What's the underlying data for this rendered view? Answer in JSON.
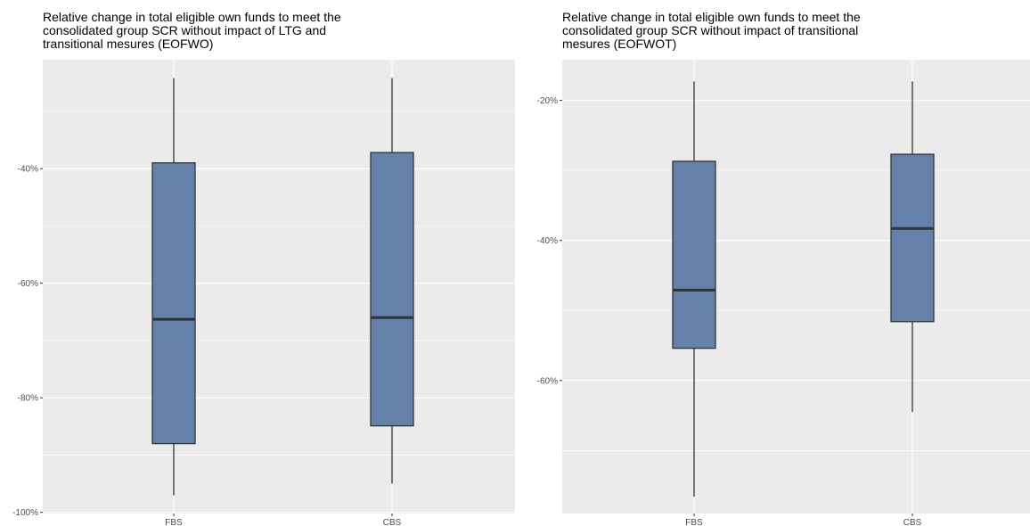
{
  "charts": [
    {
      "title_lines": [
        "Relative change in total eligible own funds to meet the",
        "consolidated group SCR without impact of LTG and",
        "transitional mesures (EOFWO)"
      ]
    },
    {
      "title_lines": [
        "Relative change in total eligible own funds to meet the",
        "consolidated group SCR without impact of transitional",
        "mesures (EOFWOT)"
      ]
    }
  ],
  "chart_data": [
    {
      "type": "box",
      "title": "Relative change in total eligible own funds to meet the consolidated group SCR without impact of LTG and transitional mesures (EOFWO)",
      "xlabel": "",
      "ylabel": "",
      "categories": [
        "FBS",
        "CBS"
      ],
      "boxes": [
        {
          "category": "FBS",
          "whisker_low": -97,
          "q1": -88,
          "median": -66.3,
          "q3": -39,
          "whisker_high": -24.2
        },
        {
          "category": "CBS",
          "whisker_low": -95,
          "q1": -84.9,
          "median": -66,
          "q3": -37.2,
          "whisker_high": -24.2
        }
      ],
      "y_ticks": [
        -100,
        -80,
        -60,
        -40
      ],
      "y_tick_labels": [
        "-100%",
        "-80%",
        "-60%",
        "-40%"
      ],
      "ylim": [
        -100.2,
        -21
      ],
      "grid": true,
      "colors": {
        "box_fill": "#6481aa",
        "panel_bg": "#ebebeb",
        "grid": "#ffffff",
        "line": "#333333"
      }
    },
    {
      "type": "box",
      "title": "Relative change in total eligible own funds to meet the consolidated group SCR without impact of transitional mesures (EOFWOT)",
      "xlabel": "",
      "ylabel": "",
      "categories": [
        "FBS",
        "CBS"
      ],
      "boxes": [
        {
          "category": "FBS",
          "whisker_low": -76.6,
          "q1": -55.4,
          "median": -47.1,
          "q3": -28.7,
          "whisker_high": -17.3
        },
        {
          "category": "CBS",
          "whisker_low": -64.5,
          "q1": -51.6,
          "median": -38.3,
          "q3": -27.7,
          "whisker_high": -17.3
        }
      ],
      "y_ticks": [
        -60,
        -40,
        -20
      ],
      "y_tick_labels": [
        "-60%",
        "-40%",
        "-20%"
      ],
      "ylim": [
        -79,
        -14.2
      ],
      "grid": true,
      "colors": {
        "box_fill": "#6481aa",
        "panel_bg": "#ebebeb",
        "grid": "#ffffff",
        "line": "#333333"
      }
    }
  ]
}
